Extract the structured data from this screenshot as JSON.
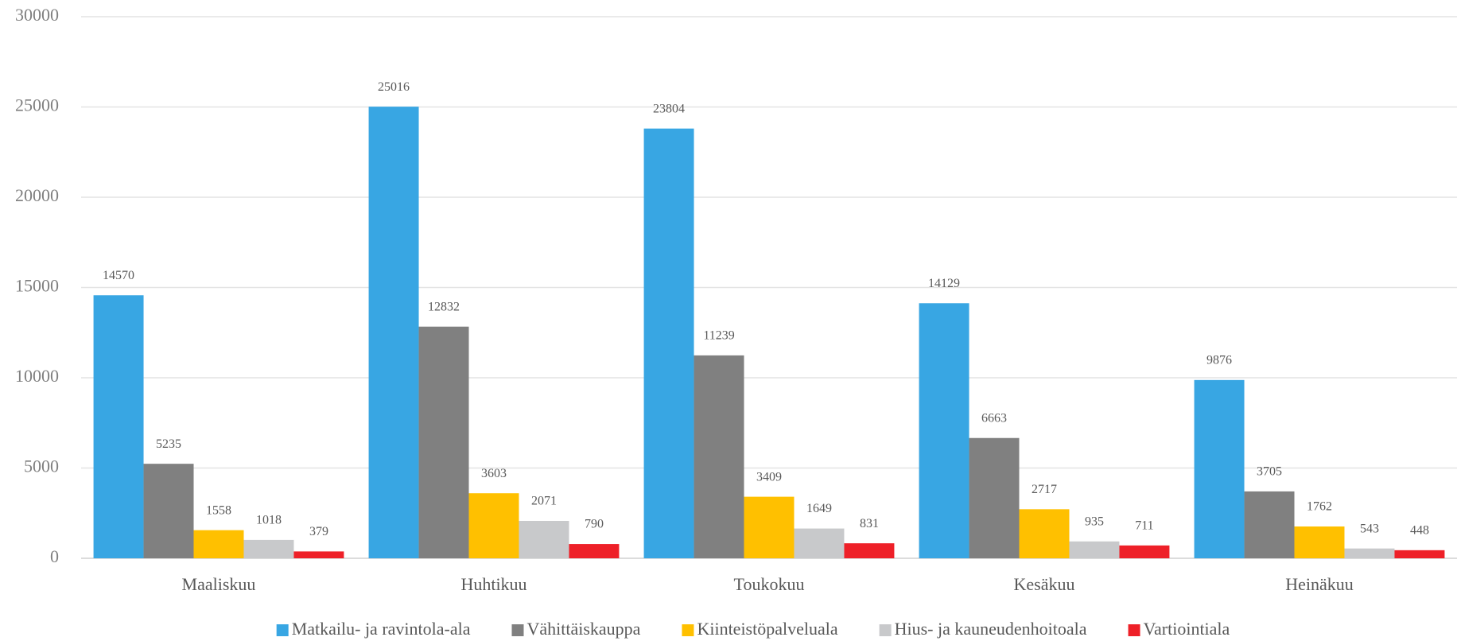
{
  "chart_data": {
    "type": "bar",
    "categories": [
      "Maaliskuu",
      "Huhtikuu",
      "Toukokuu",
      "Kesäkuu",
      "Heinäkuu"
    ],
    "series": [
      {
        "name": "Matkailu- ja ravintola-ala",
        "color": "#38a6e3",
        "values": [
          14570,
          25016,
          23804,
          14129,
          9876
        ]
      },
      {
        "name": "Vähittäiskauppa",
        "color": "#808080",
        "values": [
          5235,
          12832,
          11239,
          6663,
          3705
        ]
      },
      {
        "name": "Kiinteistöpalveluala",
        "color": "#ffc000",
        "values": [
          1558,
          3603,
          3409,
          2717,
          1762
        ]
      },
      {
        "name": "Hius- ja kauneudenhoitoala",
        "color": "#c8c9cb",
        "values": [
          1018,
          2071,
          1649,
          935,
          543
        ]
      },
      {
        "name": "Vartiointiala",
        "color": "#ee2028",
        "values": [
          379,
          790,
          831,
          711,
          448
        ]
      }
    ],
    "ylim": [
      0,
      30000
    ],
    "yticks": [
      0,
      5000,
      10000,
      15000,
      20000,
      25000,
      30000
    ],
    "grid": true,
    "legend": "bottom"
  }
}
